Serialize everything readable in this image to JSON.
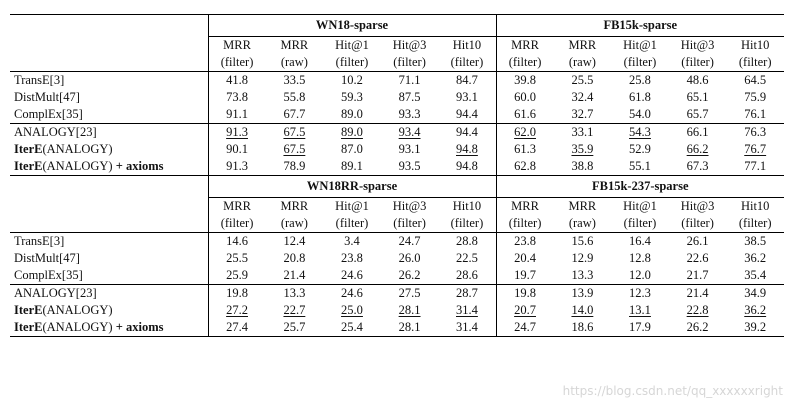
{
  "sections": [
    {
      "datasets": [
        "WN18-sparse",
        "FB15k-sparse"
      ],
      "group1": [
        {
          "model": "TransE[3]",
          "cells": [
            [
              "41.8",
              ""
            ],
            [
              "33.5",
              ""
            ],
            [
              "10.2",
              ""
            ],
            [
              "71.1",
              ""
            ],
            [
              "84.7",
              ""
            ],
            [
              "39.8",
              ""
            ],
            [
              "25.5",
              ""
            ],
            [
              "25.8",
              ""
            ],
            [
              "48.6",
              ""
            ],
            [
              "64.5",
              ""
            ]
          ]
        },
        {
          "model": "DistMult[47]",
          "cells": [
            [
              "73.8",
              ""
            ],
            [
              "55.8",
              ""
            ],
            [
              "59.3",
              ""
            ],
            [
              "87.5",
              ""
            ],
            [
              "93.1",
              ""
            ],
            [
              "60.0",
              ""
            ],
            [
              "32.4",
              ""
            ],
            [
              "61.8",
              "b"
            ],
            [
              "65.1",
              ""
            ],
            [
              "75.9",
              ""
            ]
          ]
        },
        {
          "model": "ComplEx[35]",
          "cells": [
            [
              "91.1",
              ""
            ],
            [
              "67.7",
              ""
            ],
            [
              "89.0",
              ""
            ],
            [
              "93.3",
              ""
            ],
            [
              "94.4",
              ""
            ],
            [
              "61.6",
              ""
            ],
            [
              "32.7",
              ""
            ],
            [
              "54.0",
              ""
            ],
            [
              "65.7",
              ""
            ],
            [
              "76.1",
              ""
            ]
          ]
        }
      ],
      "group2": [
        {
          "model": "ANALOGY[23]",
          "cells": [
            [
              "91.3",
              "bu"
            ],
            [
              "67.5",
              "u"
            ],
            [
              "89.0",
              "u"
            ],
            [
              "93.4",
              "u"
            ],
            [
              "94.4",
              ""
            ],
            [
              "62.0",
              "u"
            ],
            [
              "33.1",
              ""
            ],
            [
              "54.3",
              "u"
            ],
            [
              "66.1",
              ""
            ],
            [
              "76.3",
              ""
            ]
          ]
        },
        {
          "model": "IterE(ANALOGY)",
          "cells": [
            [
              "90.1",
              ""
            ],
            [
              "67.5",
              "u"
            ],
            [
              "87.0",
              ""
            ],
            [
              "93.1",
              ""
            ],
            [
              "94.8",
              "bu"
            ],
            [
              "61.3",
              ""
            ],
            [
              "35.9",
              "u"
            ],
            [
              "52.9",
              ""
            ],
            [
              "66.2",
              "u"
            ],
            [
              "76.7",
              "u"
            ]
          ]
        },
        {
          "model": "IterE(ANALOGY) + axioms",
          "cells": [
            [
              "91.3",
              "b"
            ],
            [
              "78.9",
              "b"
            ],
            [
              "89.1",
              "b"
            ],
            [
              "93.5",
              "b"
            ],
            [
              "94.8",
              "b"
            ],
            [
              "62.8",
              "b"
            ],
            [
              "38.8",
              "b"
            ],
            [
              "55.1",
              ""
            ],
            [
              "67.3",
              "b"
            ],
            [
              "77.1",
              "b"
            ]
          ]
        }
      ]
    },
    {
      "datasets": [
        "WN18RR-sparse",
        "FB15k-237-sparse"
      ],
      "group1": [
        {
          "model": "TransE[3]",
          "cells": [
            [
              "14.6",
              ""
            ],
            [
              "12.4",
              ""
            ],
            [
              "3.4",
              ""
            ],
            [
              "24.7",
              ""
            ],
            [
              "28.8",
              ""
            ],
            [
              "23.8",
              ""
            ],
            [
              "15.6",
              ""
            ],
            [
              "16.4",
              ""
            ],
            [
              "26.1",
              ""
            ],
            [
              "38.5",
              ""
            ]
          ]
        },
        {
          "model": "DistMult[47]",
          "cells": [
            [
              "25.5",
              ""
            ],
            [
              "20.8",
              ""
            ],
            [
              "23.8",
              ""
            ],
            [
              "26.0",
              ""
            ],
            [
              "22.5",
              ""
            ],
            [
              "20.4",
              ""
            ],
            [
              "12.9",
              ""
            ],
            [
              "12.8",
              ""
            ],
            [
              "22.6",
              ""
            ],
            [
              "36.2",
              ""
            ]
          ]
        },
        {
          "model": "ComplEx[35]",
          "cells": [
            [
              "25.9",
              ""
            ],
            [
              "21.4",
              ""
            ],
            [
              "24.6",
              ""
            ],
            [
              "26.2",
              ""
            ],
            [
              "28.6",
              ""
            ],
            [
              "19.7",
              ""
            ],
            [
              "13.3",
              ""
            ],
            [
              "12.0",
              ""
            ],
            [
              "21.7",
              ""
            ],
            [
              "35.4",
              ""
            ]
          ]
        }
      ],
      "group2": [
        {
          "model": "ANALOGY[23]",
          "cells": [
            [
              "19.8",
              ""
            ],
            [
              "13.3",
              ""
            ],
            [
              "24.6",
              ""
            ],
            [
              "27.5",
              ""
            ],
            [
              "28.7",
              ""
            ],
            [
              "19.8",
              ""
            ],
            [
              "13.9",
              ""
            ],
            [
              "12.3",
              ""
            ],
            [
              "21.4",
              ""
            ],
            [
              "34.9",
              ""
            ]
          ]
        },
        {
          "model": "IterE(ANALOGY)",
          "cells": [
            [
              "27.2",
              "u"
            ],
            [
              "22.7",
              "u"
            ],
            [
              "25.0",
              "u"
            ],
            [
              "28.1",
              "bu"
            ],
            [
              "31.4",
              "bu"
            ],
            [
              "20.7",
              "u"
            ],
            [
              "14.0",
              "u"
            ],
            [
              "13.1",
              "u"
            ],
            [
              "22.8",
              "u"
            ],
            [
              "36.2",
              "u"
            ]
          ]
        },
        {
          "model": "IterE(ANALOGY) + axioms",
          "cells": [
            [
              "27.4",
              "b"
            ],
            [
              "25.7",
              "b"
            ],
            [
              "25.4",
              "b"
            ],
            [
              "28.1",
              "b"
            ],
            [
              "31.4",
              "b"
            ],
            [
              "24.7",
              "b"
            ],
            [
              "18.6",
              "b"
            ],
            [
              "17.9",
              "b"
            ],
            [
              "26.2",
              "b"
            ],
            [
              "39.2",
              "b"
            ]
          ]
        }
      ]
    }
  ],
  "metric_headers": [
    [
      "MRR",
      "(filter)"
    ],
    [
      "MRR",
      "(raw)"
    ],
    [
      "Hit@1",
      "(filter)"
    ],
    [
      "Hit@3",
      "(filter)"
    ],
    [
      "Hit10",
      "(filter)"
    ]
  ],
  "watermark": "https://blog.csdn.net/qq_xxxxxxright"
}
